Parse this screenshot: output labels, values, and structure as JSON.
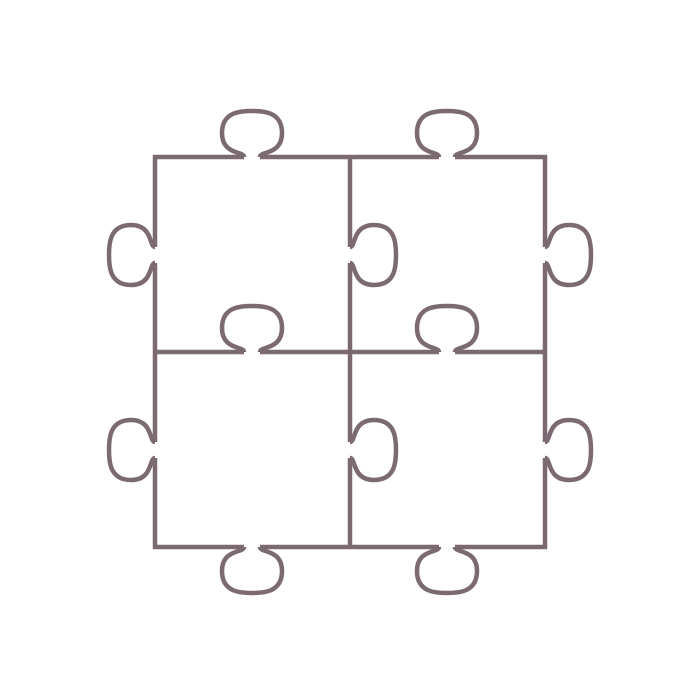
{
  "illustration": {
    "subject": "jigsaw-puzzle-2x2-grid",
    "grid": {
      "rows": 2,
      "columns": 2
    },
    "stroke_color": "#7c6a73",
    "background_color": "#ffffff",
    "pieces": [
      {
        "row": 1,
        "column": 1
      },
      {
        "row": 1,
        "column": 2
      },
      {
        "row": 2,
        "column": 1
      },
      {
        "row": 2,
        "column": 2
      }
    ]
  }
}
